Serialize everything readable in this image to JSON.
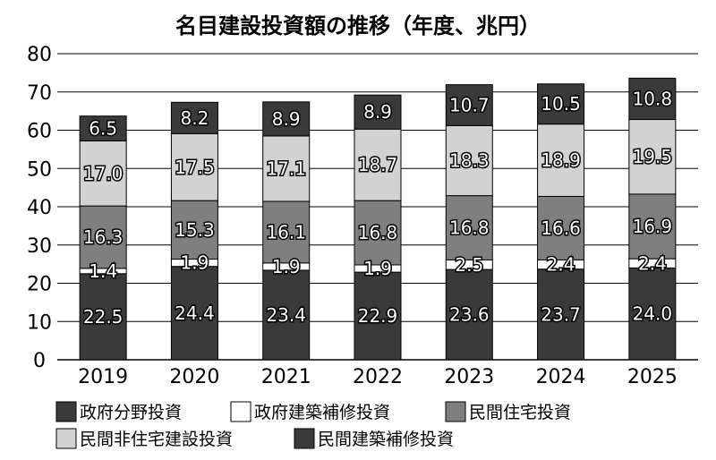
{
  "chart_data": {
    "type": "bar",
    "stacked": true,
    "title": "名目建設投資額の推移（年度、兆円）",
    "xlabel": "",
    "ylabel": "",
    "ylim": [
      0,
      80
    ],
    "yticks": [
      0,
      10,
      20,
      30,
      40,
      50,
      60,
      70,
      80
    ],
    "grid": true,
    "legend_position": "bottom",
    "categories": [
      "2019",
      "2020",
      "2021",
      "2022",
      "2023",
      "2024",
      "2025"
    ],
    "series": [
      {
        "name": "政府分野投資",
        "color": "#3a3a3a",
        "values": [
          22.5,
          24.4,
          23.4,
          22.9,
          23.6,
          23.7,
          24.0
        ]
      },
      {
        "name": "政府建築補修投資",
        "color": "#ffffff",
        "values": [
          1.4,
          1.9,
          1.9,
          1.9,
          2.5,
          2.4,
          2.4
        ]
      },
      {
        "name": "民間住宅投資",
        "color": "#7f7f7f",
        "values": [
          16.3,
          15.3,
          16.1,
          16.8,
          16.8,
          16.6,
          16.9
        ]
      },
      {
        "name": "民間非住宅建設投資",
        "color": "#d2d2d2",
        "values": [
          17.0,
          17.5,
          17.1,
          18.7,
          18.3,
          18.9,
          19.5
        ]
      },
      {
        "name": "民間建築補修投資",
        "color": "#3a3a3a",
        "values": [
          6.5,
          8.2,
          8.9,
          8.9,
          10.7,
          10.5,
          10.8
        ]
      }
    ]
  }
}
